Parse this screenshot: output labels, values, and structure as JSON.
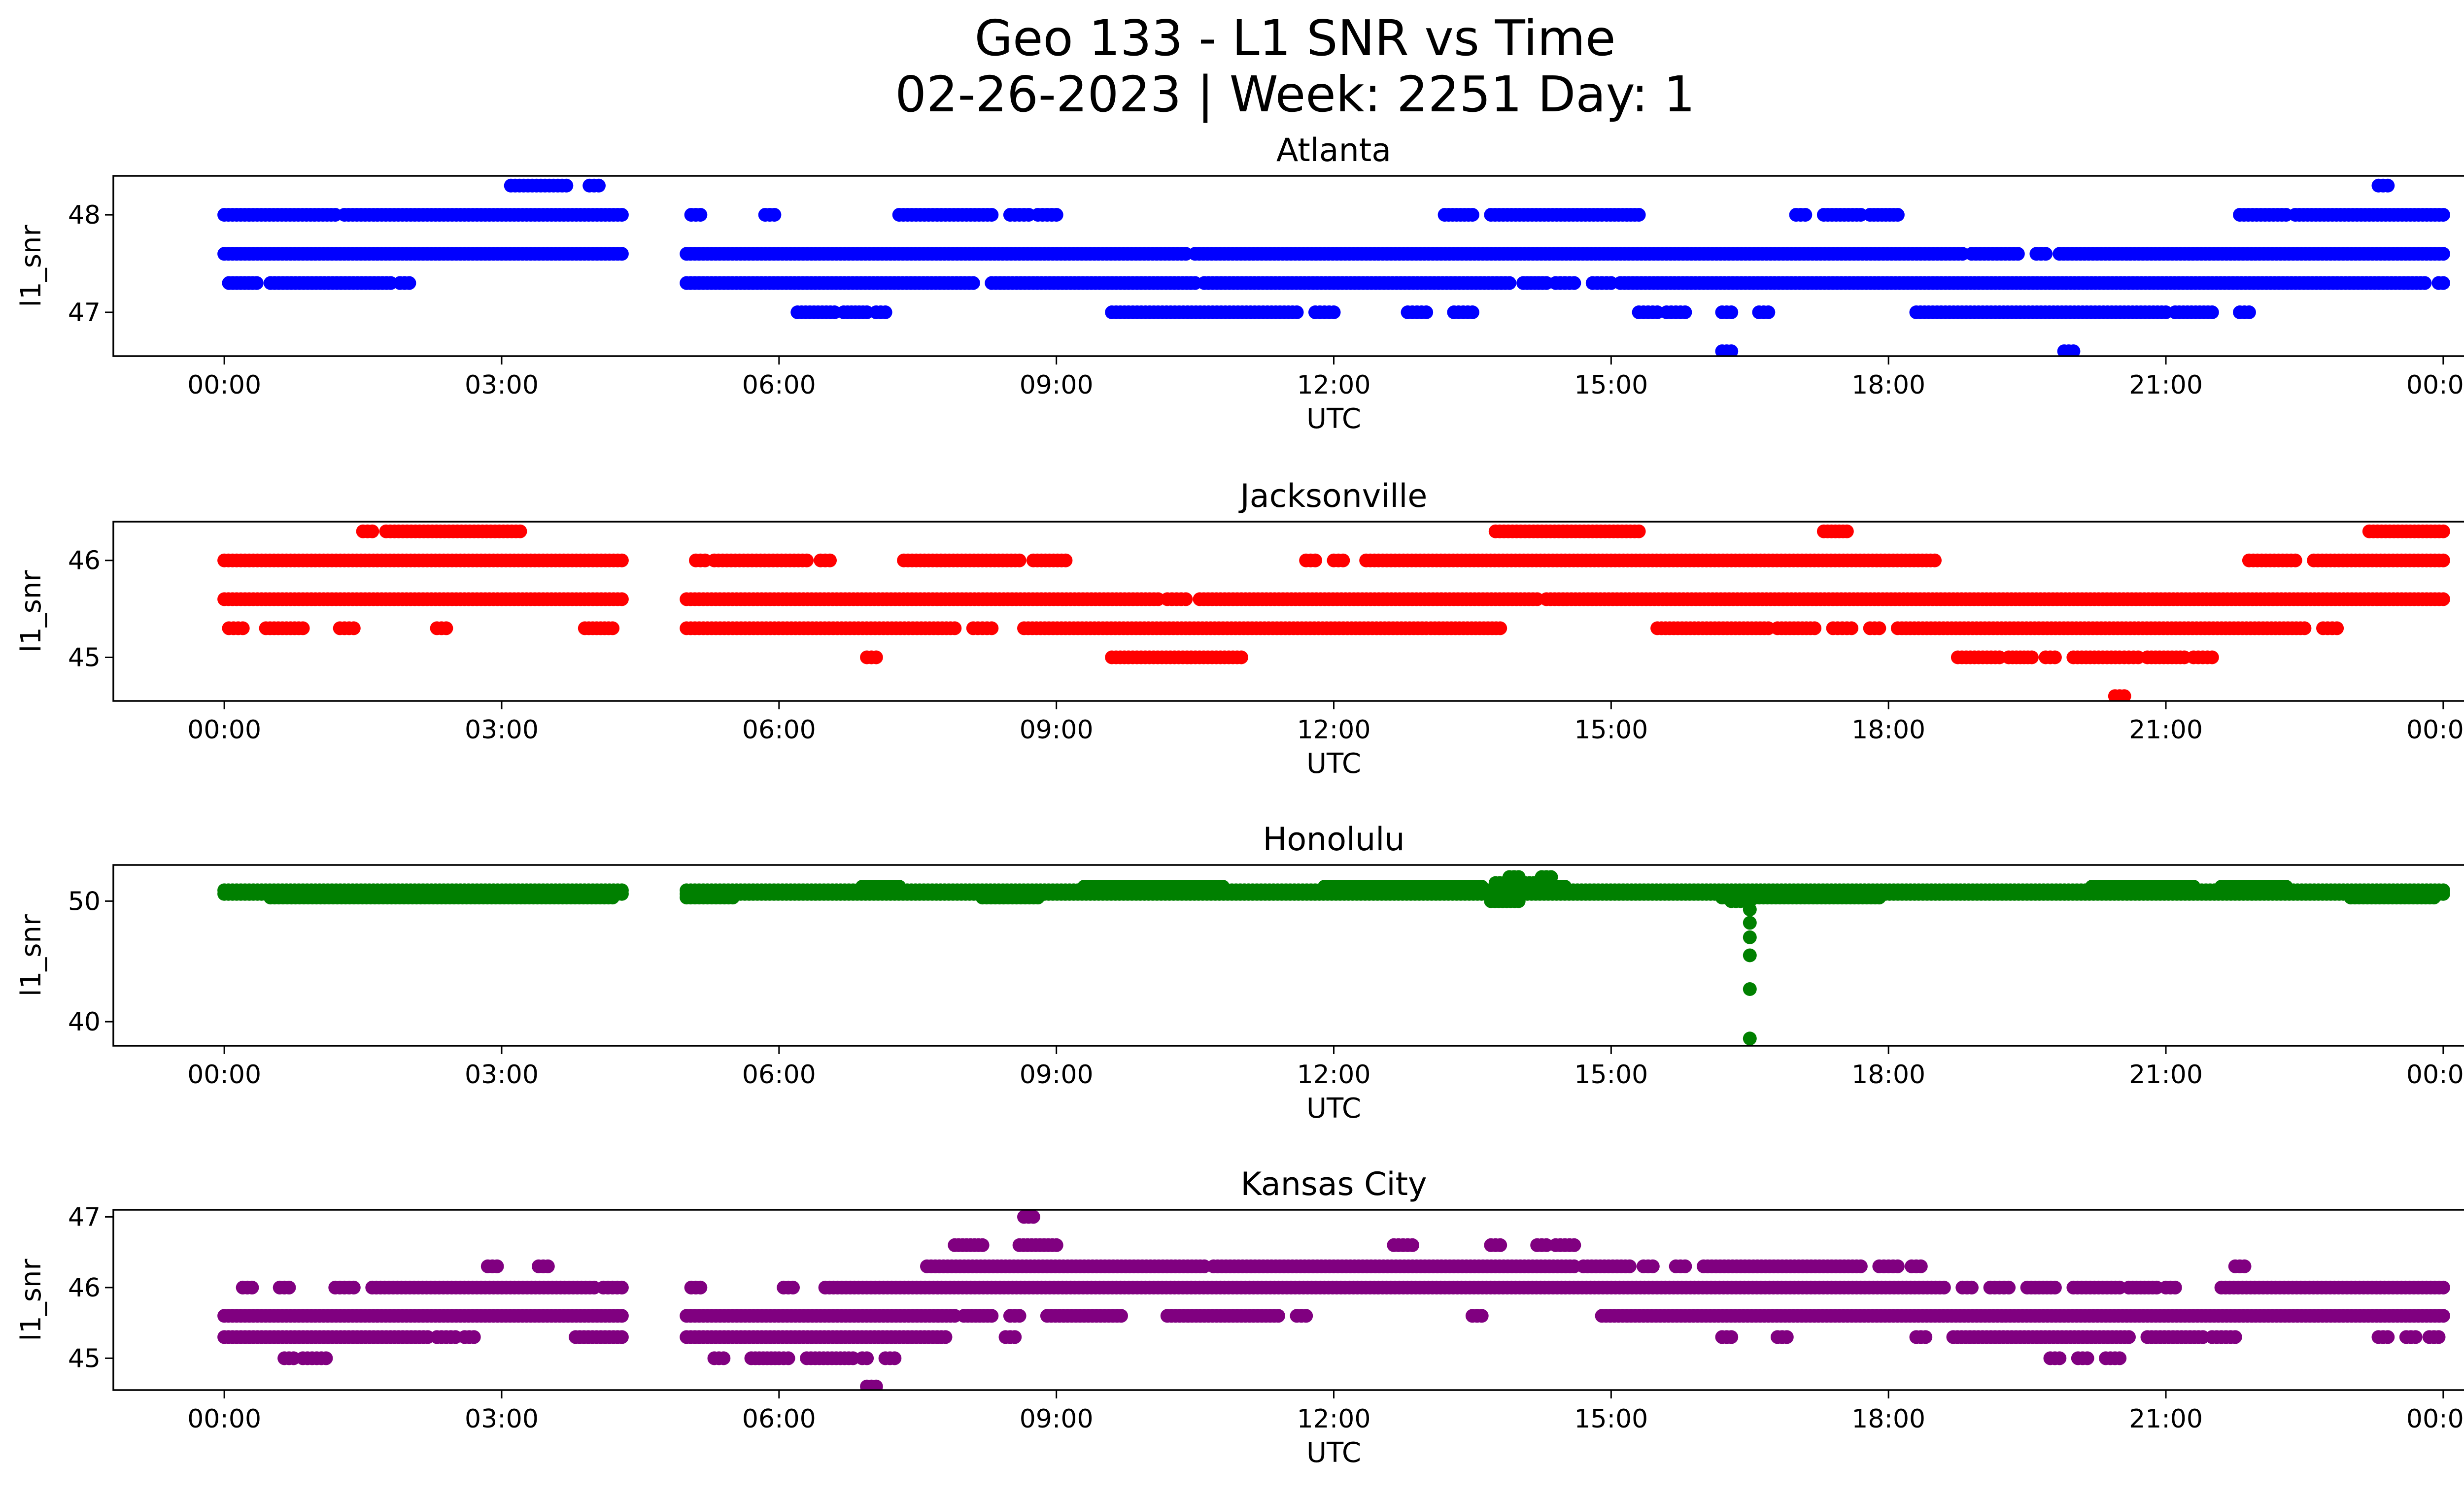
{
  "figure": {
    "title_line1": "Geo 133 - L1 SNR vs Time",
    "title_line2": "02-26-2023 | Week: 2251 Day: 1"
  },
  "chart_data": [
    {
      "type": "scatter",
      "title": "Atlanta",
      "xlabel": "UTC",
      "ylabel": "l1_snr",
      "color": "#0000ff",
      "x_ticks": [
        "00:00",
        "03:00",
        "06:00",
        "09:00",
        "12:00",
        "15:00",
        "18:00",
        "21:00",
        "00:00"
      ],
      "xlim": [
        -1.2,
        25.2
      ],
      "ylim": [
        46.55,
        48.4
      ],
      "y_ticks": [
        47,
        48
      ],
      "segments": [
        {
          "y": 48.0,
          "runs": [
            [
              0.0,
              1.2
            ],
            [
              1.3,
              4.3
            ],
            [
              5.05,
              5.15
            ],
            [
              5.85,
              5.95
            ],
            [
              7.3,
              8.3
            ],
            [
              8.5,
              8.7
            ],
            [
              8.8,
              9.0
            ],
            [
              13.2,
              13.5
            ],
            [
              13.7,
              14.9
            ],
            [
              14.95,
              15.3
            ],
            [
              17.0,
              17.1
            ],
            [
              17.3,
              17.7
            ],
            [
              17.8,
              18.1
            ],
            [
              21.8,
              22.3
            ],
            [
              22.4,
              24.0
            ]
          ]
        },
        {
          "y": 47.6,
          "runs": [
            [
              0.0,
              4.3
            ],
            [
              5.0,
              10.4
            ],
            [
              10.5,
              18.8
            ],
            [
              18.9,
              19.4
            ],
            [
              19.6,
              19.7
            ],
            [
              19.85,
              24.0
            ]
          ]
        },
        {
          "y": 47.3,
          "runs": [
            [
              0.05,
              0.35
            ],
            [
              0.5,
              1.8
            ],
            [
              1.9,
              2.0
            ],
            [
              5.0,
              8.1
            ],
            [
              8.3,
              10.5
            ],
            [
              10.6,
              13.9
            ],
            [
              14.05,
              14.3
            ],
            [
              14.4,
              14.6
            ],
            [
              14.8,
              15.0
            ],
            [
              15.1,
              23.8
            ],
            [
              23.95,
              24.0
            ]
          ]
        },
        {
          "y": 47.0,
          "runs": [
            [
              6.2,
              6.6
            ],
            [
              6.7,
              6.95
            ],
            [
              7.05,
              7.15
            ],
            [
              9.6,
              11.6
            ],
            [
              11.8,
              12.0
            ],
            [
              12.8,
              13.0
            ],
            [
              13.3,
              13.5
            ],
            [
              15.3,
              15.5
            ],
            [
              15.6,
              15.8
            ],
            [
              16.2,
              16.3
            ],
            [
              16.6,
              16.7
            ],
            [
              18.3,
              21.0
            ],
            [
              21.1,
              21.5
            ],
            [
              21.8,
              21.9
            ]
          ]
        },
        {
          "y": 48.3,
          "runs": [
            [
              3.1,
              3.7
            ],
            [
              3.95,
              4.05
            ],
            [
              23.3,
              23.4
            ]
          ]
        },
        {
          "y": 46.6,
          "runs": [
            [
              16.2,
              16.3
            ],
            [
              19.9,
              20.0
            ]
          ]
        }
      ]
    },
    {
      "type": "scatter",
      "title": "Jacksonville",
      "xlabel": "UTC",
      "ylabel": "l1_snr",
      "color": "#ff0000",
      "x_ticks": [
        "00:00",
        "03:00",
        "06:00",
        "09:00",
        "12:00",
        "15:00",
        "18:00",
        "21:00",
        "00:00"
      ],
      "xlim": [
        -1.2,
        25.2
      ],
      "ylim": [
        44.55,
        46.4
      ],
      "y_ticks": [
        45,
        46
      ],
      "segments": [
        {
          "y": 46.0,
          "runs": [
            [
              0.0,
              4.3
            ],
            [
              5.1,
              5.2
            ],
            [
              5.3,
              6.3
            ],
            [
              6.45,
              6.55
            ],
            [
              7.35,
              8.6
            ],
            [
              8.75,
              9.1
            ],
            [
              11.7,
              11.8
            ],
            [
              12.0,
              12.1
            ],
            [
              12.35,
              18.5
            ],
            [
              21.9,
              22.4
            ],
            [
              22.6,
              24.0
            ]
          ]
        },
        {
          "y": 45.6,
          "runs": [
            [
              0.0,
              4.3
            ],
            [
              5.0,
              10.1
            ],
            [
              10.2,
              10.4
            ],
            [
              10.55,
              14.2
            ],
            [
              14.3,
              24.0
            ]
          ]
        },
        {
          "y": 45.3,
          "runs": [
            [
              0.05,
              0.2
            ],
            [
              0.45,
              0.85
            ],
            [
              1.25,
              1.4
            ],
            [
              2.3,
              2.4
            ],
            [
              3.9,
              4.2
            ],
            [
              5.0,
              7.9
            ],
            [
              8.1,
              8.3
            ],
            [
              8.65,
              13.0
            ],
            [
              13.05,
              13.8
            ],
            [
              15.5,
              16.7
            ],
            [
              16.8,
              17.2
            ],
            [
              17.4,
              17.6
            ],
            [
              17.8,
              17.9
            ],
            [
              18.1,
              22.5
            ],
            [
              22.7,
              22.85
            ]
          ]
        },
        {
          "y": 45.0,
          "runs": [
            [
              6.95,
              7.05
            ],
            [
              9.6,
              11.0
            ],
            [
              18.75,
              19.2
            ],
            [
              19.3,
              19.55
            ],
            [
              19.7,
              19.8
            ],
            [
              20.0,
              20.5
            ],
            [
              20.55,
              20.7
            ],
            [
              20.8,
              21.2
            ],
            [
              21.3,
              21.5
            ]
          ]
        },
        {
          "y": 46.3,
          "runs": [
            [
              1.5,
              1.6
            ],
            [
              1.75,
              3.2
            ],
            [
              13.75,
              15.3
            ],
            [
              17.3,
              17.55
            ],
            [
              23.2,
              24.0
            ]
          ]
        },
        {
          "y": 44.6,
          "runs": [
            [
              20.45,
              20.55
            ]
          ]
        }
      ]
    },
    {
      "type": "scatter",
      "title": "Honolulu",
      "xlabel": "UTC",
      "ylabel": "l1_snr",
      "color": "#008000",
      "x_ticks": [
        "00:00",
        "03:00",
        "06:00",
        "09:00",
        "12:00",
        "15:00",
        "18:00",
        "21:00",
        "00:00"
      ],
      "xlim": [
        -1.2,
        25.2
      ],
      "ylim": [
        38.0,
        53.0
      ],
      "y_ticks": [
        40,
        50
      ],
      "segments": [
        {
          "y": 50.6,
          "runs": [
            [
              0.0,
              4.3
            ],
            [
              5.0,
              24.0
            ]
          ]
        },
        {
          "y": 50.9,
          "runs": [
            [
              0.0,
              4.3
            ],
            [
              5.0,
              24.0
            ]
          ]
        },
        {
          "y": 51.2,
          "runs": [
            [
              6.9,
              7.3
            ],
            [
              9.3,
              10.8
            ],
            [
              11.9,
              13.6
            ],
            [
              14.0,
              14.5
            ],
            [
              20.2,
              21.3
            ],
            [
              21.6,
              22.3
            ]
          ]
        },
        {
          "y": 50.3,
          "runs": [
            [
              0.5,
              4.2
            ],
            [
              5.0,
              5.5
            ],
            [
              8.2,
              8.8
            ],
            [
              16.2,
              17.9
            ],
            [
              23.0,
              23.9
            ]
          ]
        },
        {
          "y": 51.5,
          "runs": [
            [
              13.75,
              14.3
            ]
          ]
        },
        {
          "y": 50.0,
          "runs": [
            [
              13.7,
              14.0
            ],
            [
              16.3,
              16.5
            ]
          ]
        },
        {
          "y": 52.0,
          "runs": [
            [
              13.9,
              14.0
            ],
            [
              14.25,
              14.35
            ]
          ]
        }
      ],
      "points": [
        [
          16.5,
          49.3
        ],
        [
          16.5,
          48.2
        ],
        [
          16.5,
          47.0
        ],
        [
          16.5,
          45.5
        ],
        [
          16.5,
          42.7
        ],
        [
          16.5,
          38.6
        ]
      ]
    },
    {
      "type": "scatter",
      "title": "Kansas City",
      "xlabel": "UTC",
      "ylabel": "l1_snr",
      "color": "#800080",
      "x_ticks": [
        "00:00",
        "03:00",
        "06:00",
        "09:00",
        "12:00",
        "15:00",
        "18:00",
        "21:00",
        "00:00"
      ],
      "xlim": [
        -1.2,
        25.2
      ],
      "ylim": [
        44.55,
        47.1
      ],
      "y_ticks": [
        45,
        46,
        47
      ],
      "segments": [
        {
          "y": 45.6,
          "runs": [
            [
              0.0,
              4.3
            ],
            [
              5.0,
              7.9
            ],
            [
              8.0,
              8.3
            ],
            [
              8.5,
              8.6
            ],
            [
              8.9,
              9.7
            ],
            [
              10.2,
              11.4
            ],
            [
              11.6,
              11.7
            ],
            [
              13.5,
              13.6
            ],
            [
              14.9,
              24.0
            ]
          ]
        },
        {
          "y": 45.3,
          "runs": [
            [
              0.0,
              2.2
            ],
            [
              2.3,
              2.5
            ],
            [
              2.6,
              2.7
            ],
            [
              3.8,
              4.3
            ],
            [
              5.0,
              7.8
            ],
            [
              8.45,
              8.55
            ],
            [
              16.2,
              16.3
            ],
            [
              16.8,
              16.9
            ],
            [
              18.3,
              18.4
            ],
            [
              18.7,
              20.6
            ],
            [
              20.8,
              21.4
            ],
            [
              21.5,
              21.6
            ],
            [
              21.65,
              21.75
            ],
            [
              23.3,
              23.4
            ],
            [
              23.6,
              23.7
            ],
            [
              23.85,
              23.95
            ]
          ]
        },
        {
          "y": 46.0,
          "runs": [
            [
              0.2,
              0.3
            ],
            [
              0.6,
              0.7
            ],
            [
              1.2,
              1.4
            ],
            [
              1.6,
              4.0
            ],
            [
              4.1,
              4.3
            ],
            [
              5.05,
              5.15
            ],
            [
              6.05,
              6.15
            ],
            [
              6.5,
              18.6
            ],
            [
              18.8,
              18.9
            ],
            [
              19.1,
              19.3
            ],
            [
              19.5,
              19.8
            ],
            [
              20.0,
              20.5
            ],
            [
              20.6,
              20.9
            ],
            [
              21.0,
              21.1
            ],
            [
              21.6,
              24.0
            ]
          ]
        },
        {
          "y": 46.3,
          "runs": [
            [
              7.6,
              10.6
            ],
            [
              10.7,
              14.6
            ],
            [
              14.7,
              15.2
            ],
            [
              15.35,
              15.45
            ],
            [
              15.7,
              15.8
            ],
            [
              16.0,
              17.7
            ],
            [
              17.9,
              18.1
            ],
            [
              18.25,
              18.35
            ],
            [
              21.75,
              21.85
            ],
            [
              2.85,
              2.95
            ],
            [
              3.4,
              3.5
            ]
          ]
        },
        {
          "y": 46.6,
          "runs": [
            [
              7.9,
              8.2
            ],
            [
              8.6,
              9.0
            ],
            [
              12.65,
              12.85
            ],
            [
              13.7,
              13.8
            ],
            [
              14.2,
              14.3
            ],
            [
              14.4,
              14.6
            ]
          ]
        },
        {
          "y": 45.0,
          "runs": [
            [
              0.65,
              0.75
            ],
            [
              0.85,
              0.95
            ],
            [
              1.0,
              1.1
            ],
            [
              5.3,
              5.4
            ],
            [
              5.7,
              6.0
            ],
            [
              6.05,
              6.1
            ],
            [
              6.3,
              6.8
            ],
            [
              6.9,
              6.95
            ],
            [
              7.15,
              7.25
            ],
            [
              19.75,
              19.85
            ],
            [
              20.05,
              20.15
            ],
            [
              20.35,
              20.5
            ]
          ]
        },
        {
          "y": 47.0,
          "runs": [
            [
              8.65,
              8.75
            ]
          ]
        },
        {
          "y": 44.6,
          "runs": [
            [
              6.95,
              7.05
            ]
          ]
        }
      ]
    }
  ]
}
